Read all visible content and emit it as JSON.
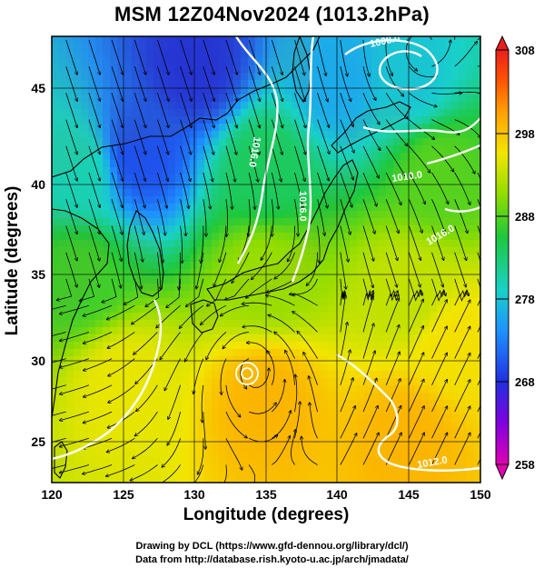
{
  "title": "MSM 12Z04Nov2024 (1013.2hPa)",
  "axes": {
    "xlabel": "Longitude (degrees)",
    "ylabel": "Latitude  (degrees)",
    "x_ticks": [
      "120",
      "125",
      "130",
      "135",
      "140",
      "145",
      "150"
    ],
    "y_ticks": [
      "25",
      "30",
      "35",
      "40",
      "45"
    ],
    "xlim": [
      120,
      150
    ],
    "ylim": [
      22.4,
      47.6
    ]
  },
  "colorbar": {
    "ticks": [
      "258",
      "268",
      "278",
      "288",
      "298",
      "308"
    ],
    "range": [
      258,
      308
    ],
    "colors": [
      "#e000b0",
      "#8000e0",
      "#2030e0",
      "#1e90ff",
      "#19d1c8",
      "#1ec83c",
      "#8fdc00",
      "#f2e600",
      "#ffa000",
      "#ff5000",
      "#e82020"
    ]
  },
  "contour_labels": [
    "1008.0",
    "1010.0",
    "1012.0",
    "1016.0",
    "1016.0",
    "1016.0"
  ],
  "credits": {
    "line1": "Drawing by DCL (https://www.gfd-dennou.org/library/dcl/)",
    "line2": "Data from http://database.rish.kyoto-u.ac.jp/arch/jmadata/"
  },
  "chart_data": {
    "type": "heatmap",
    "title": "MSM 12Z04Nov2024 (1013.2hPa)",
    "xlabel": "Longitude (degrees)",
    "ylabel": "Latitude  (degrees)",
    "xlim": [
      120,
      150
    ],
    "ylim": [
      22.4,
      47.6
    ],
    "colorbar_range": [
      258,
      308
    ],
    "colorbar_ticks": [
      258,
      268,
      278,
      288,
      298,
      308
    ],
    "grid": true,
    "field_anchor_values": [
      {
        "lon": 130,
        "lat": 46,
        "value": 268
      },
      {
        "lon": 140,
        "lat": 45,
        "value": 276
      },
      {
        "lon": 145,
        "lat": 45,
        "value": 278
      },
      {
        "lon": 126,
        "lat": 41,
        "value": 270
      },
      {
        "lon": 122,
        "lat": 40,
        "value": 280
      },
      {
        "lon": 135,
        "lat": 40,
        "value": 284
      },
      {
        "lon": 147,
        "lat": 40,
        "value": 288
      },
      {
        "lon": 122,
        "lat": 34,
        "value": 287
      },
      {
        "lon": 135,
        "lat": 34,
        "value": 291
      },
      {
        "lon": 145,
        "lat": 33,
        "value": 293
      },
      {
        "lon": 125,
        "lat": 28,
        "value": 295
      },
      {
        "lon": 135,
        "lat": 27,
        "value": 299
      },
      {
        "lon": 145,
        "lat": 25,
        "value": 299
      },
      {
        "lon": 148,
        "lat": 30,
        "value": 296
      }
    ],
    "isobars": [
      {
        "label": "1008.0",
        "lon": 143.5,
        "lat": 46.3
      },
      {
        "label": "1010.0",
        "lon": 144.3,
        "lat": 46.6
      },
      {
        "label": "1016.0",
        "lon": 138.5,
        "lat": 40.5
      },
      {
        "label": "1016.0",
        "lon": 131.5,
        "lat": 41.5
      },
      {
        "lon": 145.0,
        "lat": 40.3,
        "label": "1016.0"
      },
      {
        "lon": 146.0,
        "lat": 23.5,
        "label": "1012.0"
      }
    ],
    "circulation_centers": [
      {
        "name": "low",
        "lon": 145.5,
        "lat": 46.8
      },
      {
        "name": "typhoon",
        "lon": 134.0,
        "lat": 29.1
      }
    ]
  }
}
